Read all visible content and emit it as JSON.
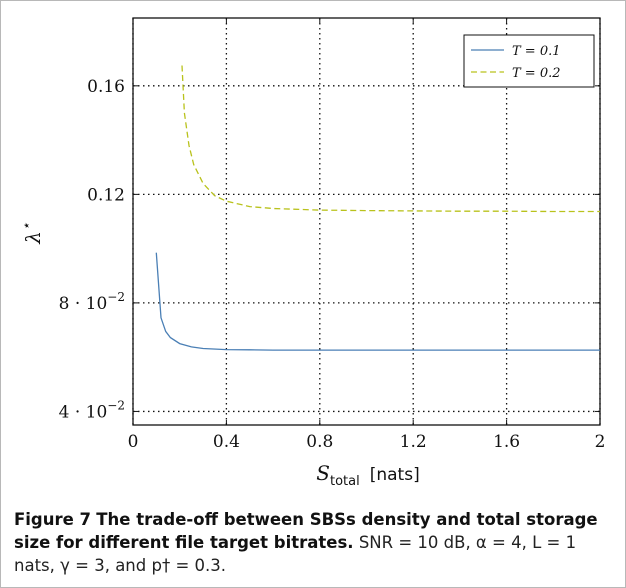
{
  "chart_data": {
    "type": "line",
    "xlim": [
      0,
      2
    ],
    "ylim": [
      0.035,
      0.185
    ],
    "x_ticks": [
      "0",
      "0.4",
      "0.8",
      "1.2",
      "1.6",
      "2"
    ],
    "x_tick_values": [
      0,
      0.4,
      0.8,
      1.2,
      1.6,
      2
    ],
    "y_ticks": [
      {
        "value": 0.04,
        "base": "4 · 10",
        "exp": "−2"
      },
      {
        "value": 0.08,
        "base": "8 · 10",
        "exp": "−2"
      },
      {
        "value": 0.12,
        "base": "0.12",
        "exp": ""
      },
      {
        "value": 0.16,
        "base": "0.16",
        "exp": ""
      }
    ],
    "xlabel": "S",
    "xlabel_sub": "total",
    "xlabel_unit": "[nats]",
    "ylabel": "λ",
    "ylabel_sup": "⋆",
    "grid": true,
    "legend_position": "top-right",
    "series": [
      {
        "name": "T = 0.1",
        "color": "#4a7fb5",
        "dash": "solid",
        "x": [
          0.1,
          0.12,
          0.14,
          0.16,
          0.2,
          0.25,
          0.3,
          0.4,
          0.5,
          0.6,
          0.8,
          1.0,
          1.2,
          1.4,
          1.6,
          1.8,
          2.0
        ],
        "y": [
          0.0985,
          0.0745,
          0.0695,
          0.0672,
          0.065,
          0.0638,
          0.0632,
          0.0628,
          0.0627,
          0.0626,
          0.0626,
          0.0626,
          0.0626,
          0.0626,
          0.0626,
          0.0626,
          0.0626
        ]
      },
      {
        "name": "T = 0.2",
        "color": "#b9c21c",
        "dash": "dashed",
        "x": [
          0.21,
          0.22,
          0.24,
          0.26,
          0.3,
          0.35,
          0.4,
          0.5,
          0.6,
          0.8,
          1.0,
          1.2,
          1.4,
          1.6,
          1.8,
          2.0
        ],
        "y": [
          0.1675,
          0.15,
          0.138,
          0.131,
          0.124,
          0.1195,
          0.1175,
          0.1155,
          0.1148,
          0.1142,
          0.114,
          0.1139,
          0.1138,
          0.1138,
          0.1137,
          0.1137
        ]
      }
    ]
  },
  "caption": {
    "label": "Figure 7",
    "title": "The trade-off between SBSs density and total storage size for different file target bitrates.",
    "body": "SNR = 10 dB, α = 4, L = 1 nats, γ = 3, and p† = 0.3."
  }
}
